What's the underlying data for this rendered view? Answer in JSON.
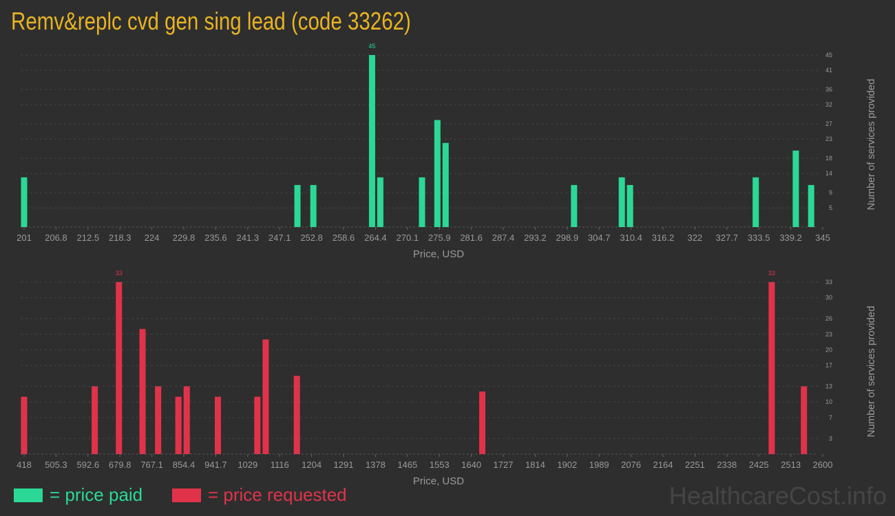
{
  "title": "Remv&replc cvd gen sing lead (code 33262)",
  "colors": {
    "paid": "#2bd896",
    "requested": "#e0334a",
    "title": "#e8b323",
    "background": "#2e2e2e",
    "axis": "#9a9a9a"
  },
  "legend": {
    "paid_label": "= price paid",
    "requested_label": "= price requested"
  },
  "watermark": "HealthcareCost.info",
  "chart_data": [
    {
      "type": "bar",
      "name": "price paid",
      "xlabel": "Price, USD",
      "ylabel": "Number of services provided",
      "x_ticks": [
        "201",
        "206.8",
        "212.5",
        "218.3",
        "224",
        "229.8",
        "235.6",
        "241.3",
        "247.1",
        "252.8",
        "258.6",
        "264.4",
        "270.1",
        "275.9",
        "281.6",
        "287.4",
        "293.2",
        "298.9",
        "304.7",
        "310.4",
        "316.2",
        "322",
        "327.7",
        "333.5",
        "339.2",
        "345"
      ],
      "xlim": [
        201,
        345
      ],
      "y_ticks": [
        5,
        9,
        14,
        18,
        23,
        27,
        32,
        36,
        41,
        45
      ],
      "ylim": [
        0,
        45
      ],
      "bars": [
        {
          "x": 201,
          "y": 13
        },
        {
          "x": 250.8,
          "y": 11
        },
        {
          "x": 253.7,
          "y": 11
        },
        {
          "x": 264.4,
          "y": 45
        },
        {
          "x": 265.9,
          "y": 13
        },
        {
          "x": 273.5,
          "y": 13
        },
        {
          "x": 276.3,
          "y": 28
        },
        {
          "x": 277.8,
          "y": 22
        },
        {
          "x": 301.2,
          "y": 11
        },
        {
          "x": 309.9,
          "y": 13
        },
        {
          "x": 311.4,
          "y": 11
        },
        {
          "x": 334.3,
          "y": 13
        },
        {
          "x": 341.6,
          "y": 20
        },
        {
          "x": 344.4,
          "y": 11
        }
      ],
      "data_labels": [
        {
          "x": 264.4,
          "text": "45"
        }
      ]
    },
    {
      "type": "bar",
      "name": "price requested",
      "xlabel": "Price, USD",
      "ylabel": "Number of services provided",
      "x_ticks": [
        "418",
        "505.3",
        "592.6",
        "679.8",
        "767.1",
        "854.4",
        "941.7",
        "1029",
        "1116",
        "1204",
        "1291",
        "1378",
        "1465",
        "1553",
        "1640",
        "1727",
        "1814",
        "1902",
        "1989",
        "2076",
        "2164",
        "2251",
        "2338",
        "2425",
        "2513",
        "2600"
      ],
      "xlim": [
        418,
        2600
      ],
      "y_ticks": [
        3,
        7,
        10,
        13,
        17,
        20,
        23,
        26,
        30,
        33
      ],
      "ylim": [
        0,
        33
      ],
      "bars": [
        {
          "x": 418,
          "y": 11
        },
        {
          "x": 613,
          "y": 13
        },
        {
          "x": 679.8,
          "y": 33
        },
        {
          "x": 745,
          "y": 24
        },
        {
          "x": 788,
          "y": 13
        },
        {
          "x": 844,
          "y": 11
        },
        {
          "x": 867,
          "y": 13
        },
        {
          "x": 953,
          "y": 11
        },
        {
          "x": 1062,
          "y": 11
        },
        {
          "x": 1085,
          "y": 22
        },
        {
          "x": 1171,
          "y": 15
        },
        {
          "x": 1683,
          "y": 12
        },
        {
          "x": 2482,
          "y": 33
        },
        {
          "x": 2571,
          "y": 13
        }
      ],
      "data_labels": [
        {
          "x": 679.8,
          "text": "33"
        },
        {
          "x": 2482,
          "text": "33"
        }
      ]
    }
  ]
}
